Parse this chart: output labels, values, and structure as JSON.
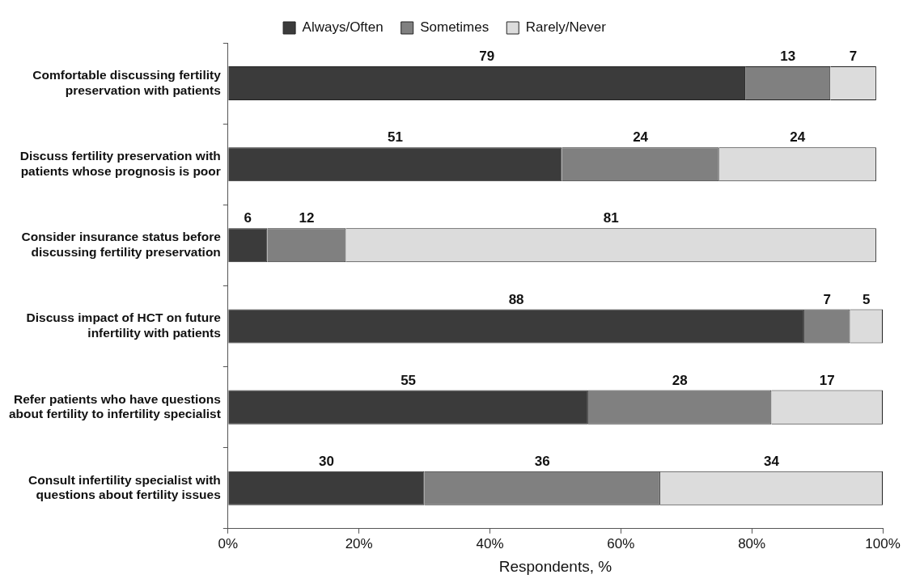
{
  "chart_data": {
    "type": "bar",
    "orientation": "horizontal",
    "stacked": true,
    "xlabel": "Respondents, %",
    "categories": [
      "Comfortable discussing fertility preservation with patients",
      "Discuss fertility preservation with patients whose prognosis is poor",
      "Consider insurance status before discussing fertility preservation",
      "Discuss impact of HCT on future infertility with patients",
      "Refer patients who have questions about fertility to infertility specialist",
      "Consult infertility specialist with questions about fertility issues"
    ],
    "series": [
      {
        "name": "Always/Often",
        "color": "#3b3b3b",
        "values": [
          79,
          51,
          6,
          88,
          55,
          30
        ]
      },
      {
        "name": "Sometimes",
        "color": "#808080",
        "values": [
          13,
          24,
          12,
          7,
          28,
          36
        ]
      },
      {
        "name": "Rarely/Never",
        "color": "#dcdcdc",
        "values": [
          7,
          24,
          81,
          5,
          17,
          34
        ]
      }
    ],
    "xlim": [
      0,
      100
    ],
    "xticks": [
      {
        "value": 0,
        "label": "0%"
      },
      {
        "value": 20,
        "label": "20%"
      },
      {
        "value": 40,
        "label": "40%"
      },
      {
        "value": 60,
        "label": "60%"
      },
      {
        "value": 80,
        "label": "80%"
      },
      {
        "value": 100,
        "label": "100%"
      }
    ],
    "data_labels": true,
    "legend": "top",
    "grid": false
  }
}
